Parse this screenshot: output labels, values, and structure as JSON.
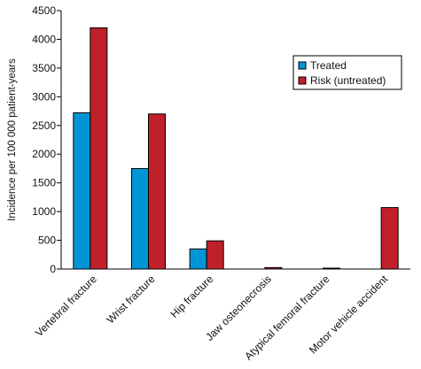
{
  "chart_data": {
    "type": "bar",
    "title": "",
    "xlabel": "",
    "ylabel": "Incidence per 100 000 patient-years",
    "ylim": [
      0,
      4500
    ],
    "yticks": [
      0,
      500,
      1000,
      1500,
      2000,
      2500,
      3000,
      3500,
      4000,
      4500
    ],
    "categories": [
      "Vertebral fracture",
      "Wrist fracture",
      "Hip fracture",
      "Jaw osteonecrosis",
      "Atypical femoral fracture",
      "Motor vehicle accident"
    ],
    "series": [
      {
        "name": "Treated",
        "color": "#0096d6",
        "values": [
          2720,
          1750,
          350,
          0,
          0,
          0
        ]
      },
      {
        "name": "Risk (untreated)",
        "color": "#c0202a",
        "values": [
          4200,
          2700,
          490,
          25,
          15,
          1070
        ]
      }
    ],
    "legend_position": "top-right",
    "grid": false
  }
}
